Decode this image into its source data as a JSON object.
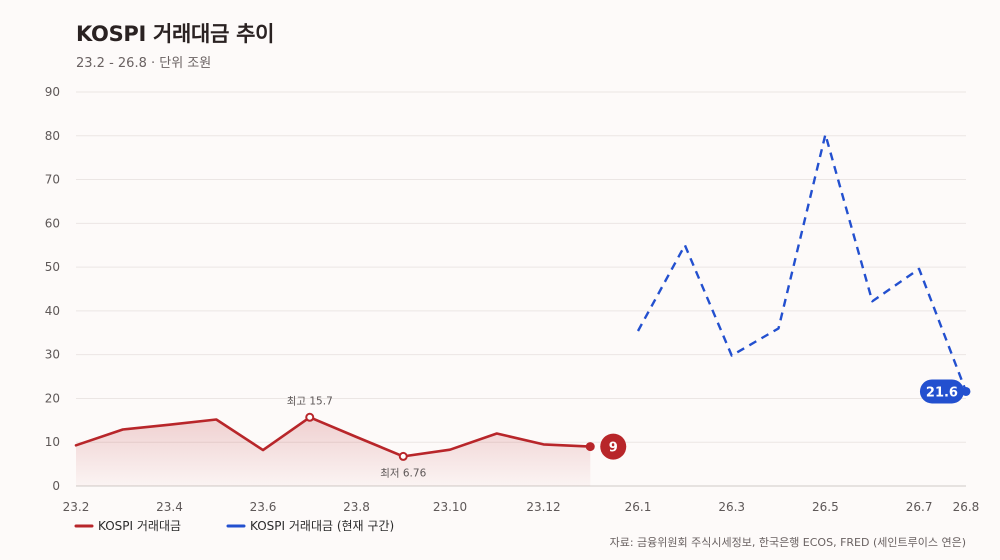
{
  "title": "KOSPI 거래대금 추이",
  "subtitle": "23.2 - 26.8 · 단위 조원",
  "source": "자료: 금융위원회 주식시세정보, 한국은행 ECOS, FRED (세인트루이스 연은)",
  "colors": {
    "historical": "#b8262a",
    "current": "#2350cf",
    "grid": "#ebe6e4",
    "axis": "#cfc9c7"
  },
  "chart_data": {
    "type": "line",
    "title": "KOSPI 거래대금 추이",
    "subtitle": "23.2 - 26.8 · 단위 조원",
    "ylim": [
      0,
      90
    ],
    "yticks": [
      0,
      10,
      20,
      30,
      40,
      50,
      60,
      70,
      80,
      90
    ],
    "xticks": [
      "23.2",
      "23.4",
      "23.6",
      "23.8",
      "23.10",
      "23.12",
      "26.1",
      "26.3",
      "26.5",
      "26.7",
      "26.8"
    ],
    "grid": true,
    "legend_position": "bottom-left",
    "series": [
      {
        "name": "KOSPI 거래대금",
        "style": "solid",
        "area_fill": true,
        "x": [
          "23.2",
          "23.3",
          "23.4",
          "23.5",
          "23.6",
          "23.7",
          "23.8",
          "23.9",
          "23.10",
          "23.11",
          "23.12",
          "24.1"
        ],
        "values": [
          9.3,
          12.9,
          14.0,
          15.2,
          8.2,
          15.7,
          11.2,
          6.76,
          8.3,
          12.0,
          9.5,
          9.0
        ]
      },
      {
        "name": "KOSPI 거래대금 (현재 구간)",
        "style": "dashed",
        "area_fill": false,
        "x": [
          "26.1",
          "26.2",
          "26.3",
          "26.4",
          "26.5",
          "26.6",
          "26.7",
          "26.8"
        ],
        "values": [
          35.4,
          55.0,
          29.8,
          36.0,
          80.3,
          42.2,
          49.6,
          21.6
        ]
      }
    ],
    "annotations": {
      "max": {
        "label": "최고 15.7",
        "value": 15.7
      },
      "min": {
        "label": "최저 6.76",
        "value": 6.76
      }
    },
    "end_labels": [
      "9",
      "21.6"
    ]
  }
}
